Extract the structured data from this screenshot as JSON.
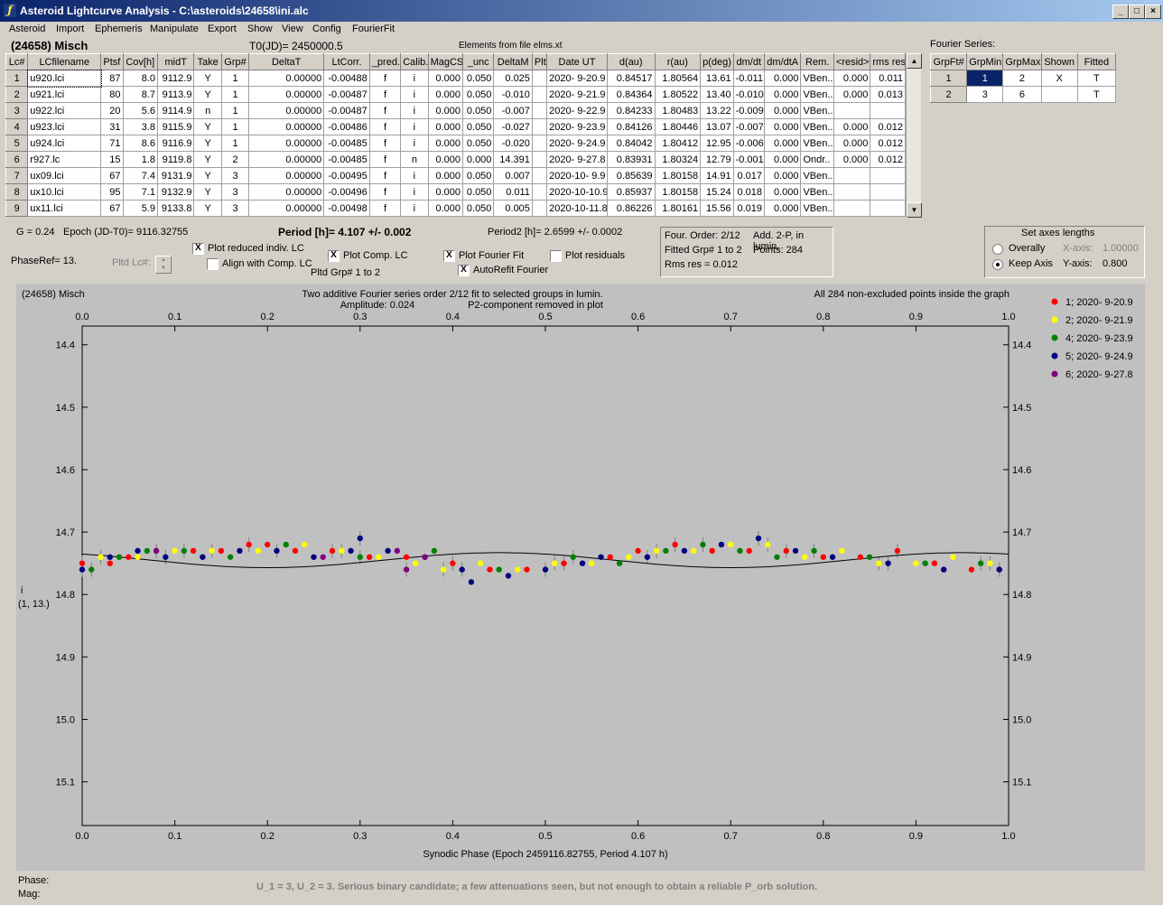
{
  "window": {
    "title": "Asteroid Lightcurve Analysis - C:\\asteroids\\24658\\ini.alc"
  },
  "menu": [
    "Asteroid",
    "Import",
    "Ephemeris",
    "Manipulate",
    "Export",
    "Show",
    "View",
    "Config",
    "FourierFit"
  ],
  "header": {
    "object": "(24658) Misch",
    "t0": "T0(JD)= 2450000.5",
    "elements": "Elements from file elms.xt"
  },
  "lc_table": {
    "columns": [
      "Lc#",
      "LCfilename",
      "Ptsf",
      "Cov[h]",
      "midT",
      "Take",
      "Grp#",
      "DeltaT",
      "LtCorr.",
      "_pred.",
      "Calib.",
      "MagCS",
      "_unc",
      "DeltaM",
      "Plt",
      "Date UT",
      "d(au)",
      "r(au)",
      "p(deg)",
      "dm/dt",
      "dm/dtA",
      "Rem.",
      "<resid>",
      "rms res"
    ],
    "rows": [
      [
        "1",
        "u920.lci",
        "87",
        "8.0",
        "9112.9",
        "Y",
        "1",
        "0.00000",
        "-0.00488",
        "f",
        "i",
        "0.000",
        "0.050",
        "0.025",
        "",
        "2020- 9-20.9",
        "0.84517",
        "1.80564",
        "13.61",
        "-0.011",
        "0.000",
        "VBen..",
        "0.000",
        "0.011"
      ],
      [
        "2",
        "u921.lci",
        "80",
        "8.7",
        "9113.9",
        "Y",
        "1",
        "0.00000",
        "-0.00487",
        "f",
        "i",
        "0.000",
        "0.050",
        "-0.010",
        "",
        "2020- 9-21.9",
        "0.84364",
        "1.80522",
        "13.40",
        "-0.010",
        "0.000",
        "VBen..",
        "0.000",
        "0.013"
      ],
      [
        "3",
        "u922.lci",
        "20",
        "5.6",
        "9114.9",
        "n",
        "1",
        "0.00000",
        "-0.00487",
        "f",
        "i",
        "0.000",
        "0.050",
        "-0.007",
        "",
        "2020- 9-22.9",
        "0.84233",
        "1.80483",
        "13.22",
        "-0.009",
        "0.000",
        "VBen..",
        "",
        ""
      ],
      [
        "4",
        "u923.lci",
        "31",
        "3.8",
        "9115.9",
        "Y",
        "1",
        "0.00000",
        "-0.00486",
        "f",
        "i",
        "0.000",
        "0.050",
        "-0.027",
        "",
        "2020- 9-23.9",
        "0.84126",
        "1.80446",
        "13.07",
        "-0.007",
        "0.000",
        "VBen..",
        "0.000",
        "0.012"
      ],
      [
        "5",
        "u924.lci",
        "71",
        "8.6",
        "9116.9",
        "Y",
        "1",
        "0.00000",
        "-0.00485",
        "f",
        "i",
        "0.000",
        "0.050",
        "-0.020",
        "",
        "2020- 9-24.9",
        "0.84042",
        "1.80412",
        "12.95",
        "-0.006",
        "0.000",
        "VBen..",
        "0.000",
        "0.012"
      ],
      [
        "6",
        "r927.lc",
        "15",
        "1.8",
        "9119.8",
        "Y",
        "2",
        "0.00000",
        "-0.00485",
        "f",
        "n",
        "0.000",
        "0.000",
        "14.391",
        "",
        "2020- 9-27.8",
        "0.83931",
        "1.80324",
        "12.79",
        "-0.001",
        "0.000",
        "Ondr..",
        "0.000",
        "0.012"
      ],
      [
        "7",
        "ux09.lci",
        "67",
        "7.4",
        "9131.9",
        "Y",
        "3",
        "0.00000",
        "-0.00495",
        "f",
        "i",
        "0.000",
        "0.050",
        "0.007",
        "",
        "2020-10- 9.9",
        "0.85639",
        "1.80158",
        "14.91",
        "0.017",
        "0.000",
        "VBen..",
        "",
        ""
      ],
      [
        "8",
        "ux10.lci",
        "95",
        "7.1",
        "9132.9",
        "Y",
        "3",
        "0.00000",
        "-0.00496",
        "f",
        "i",
        "0.000",
        "0.050",
        "0.011",
        "",
        "2020-10-10.9",
        "0.85937",
        "1.80158",
        "15.24",
        "0.018",
        "0.000",
        "VBen..",
        "",
        ""
      ],
      [
        "9",
        "ux11.lci",
        "67",
        "5.9",
        "9133.8",
        "Y",
        "3",
        "0.00000",
        "-0.00498",
        "f",
        "i",
        "0.000",
        "0.050",
        "0.005",
        "",
        "2020-10-11.8",
        "0.86226",
        "1.80161",
        "15.56",
        "0.019",
        "0.000",
        "VBen..",
        "",
        ""
      ]
    ]
  },
  "fourier": {
    "label": "Fourier Series:",
    "columns": [
      "GrpFt#",
      "GrpMin",
      "GrpMax",
      "Shown",
      "Fitted"
    ],
    "rows": [
      [
        "1",
        "1",
        "2",
        "X",
        "T"
      ],
      [
        "2",
        "3",
        "6",
        "",
        "T"
      ]
    ]
  },
  "controls": {
    "g": "G = 0.24",
    "epoch": "Epoch (JD-T0)= 9116.32755",
    "period": "Period [h]= 4.107 +/- 0.002",
    "period2": "Period2 [h]= 2.6599 +/- 0.0002",
    "phaseref": "PhaseRef= 13.",
    "pltd_lc": "Pltd Lc#:",
    "plot_reduced": "Plot reduced indiv. LC",
    "align_comp": "Align with Comp. LC",
    "plot_comp": "Plot Comp. LC",
    "pltd_grp": "Pltd Grp#  1   to   2",
    "plot_fourier": "Plot Fourier Fit",
    "autorefit": "AutoRefit Fourier",
    "plot_residuals": "Plot residuals",
    "check": "X"
  },
  "info_box": {
    "order": "Four. Order:  2/12",
    "add": "Add. 2-P, in lumin.",
    "fitted": "Fitted Grp# 1 to 2",
    "points": "Points: 284",
    "rms": "Rms res     = 0.012"
  },
  "axes_box": {
    "title": "Set axes lengths",
    "overally": "Overally",
    "keep_axis": "Keep Axis",
    "xaxis_label": "X-axis:",
    "xaxis_value": "1.00000",
    "yaxis_label": "Y-axis:",
    "yaxis_value": "0.800"
  },
  "plot": {
    "object": "(24658) Misch",
    "line1": "Two additive Fourier series order 2/12 fit to selected groups in lumin.",
    "line2a": "Amplitude: 0.024",
    "line2b": "P2-component removed in plot",
    "points_note": "All 284 non-excluded points inside the graph",
    "yaxis_label": "i",
    "yaxis_sub": "(1, 13.)",
    "xlabel": "Synodic Phase (Epoch 2459116.82755, Period 4.107 h)"
  },
  "chart_data": {
    "type": "scatter",
    "title": "",
    "xlabel": "Synodic Phase (Epoch 2459116.82755, Period 4.107 h)",
    "ylabel": "i",
    "xlim": [
      0.0,
      1.0
    ],
    "ylim": [
      15.17,
      14.37
    ],
    "y_inverted": true,
    "x_ticks": [
      "0.0",
      "0.1",
      "0.2",
      "0.3",
      "0.4",
      "0.5",
      "0.6",
      "0.7",
      "0.8",
      "0.9",
      "1.0"
    ],
    "y_ticks": [
      "14.4",
      "14.5",
      "14.6",
      "14.7",
      "14.8",
      "14.9",
      "15.0",
      "15.1"
    ],
    "fit_curve": {
      "mean": 14.745,
      "amp": 0.012,
      "harmonics": 2
    },
    "series": [
      {
        "name": "1; 2020- 9-20.9",
        "color": "#ff0000",
        "x": [
          0.0,
          0.03,
          0.05,
          0.08,
          0.12,
          0.15,
          0.18,
          0.2,
          0.23,
          0.27,
          0.31,
          0.35,
          0.4,
          0.44,
          0.48,
          0.52,
          0.57,
          0.6,
          0.64,
          0.68,
          0.72,
          0.76,
          0.8,
          0.84,
          0.88,
          0.92,
          0.96,
          0.99
        ],
        "y": [
          14.75,
          14.75,
          14.74,
          14.73,
          14.73,
          14.73,
          14.72,
          14.72,
          14.73,
          14.73,
          14.74,
          14.74,
          14.75,
          14.76,
          14.76,
          14.75,
          14.74,
          14.73,
          14.72,
          14.73,
          14.73,
          14.73,
          14.74,
          14.74,
          14.73,
          14.75,
          14.76,
          14.76
        ]
      },
      {
        "name": "2; 2020- 9-21.9",
        "color": "#ffff00",
        "x": [
          0.02,
          0.06,
          0.1,
          0.14,
          0.19,
          0.24,
          0.28,
          0.32,
          0.36,
          0.39,
          0.43,
          0.47,
          0.51,
          0.55,
          0.59,
          0.62,
          0.66,
          0.7,
          0.74,
          0.78,
          0.82,
          0.86,
          0.9,
          0.94,
          0.98
        ],
        "y": [
          14.74,
          14.74,
          14.73,
          14.73,
          14.73,
          14.72,
          14.73,
          14.74,
          14.75,
          14.76,
          14.75,
          14.76,
          14.75,
          14.75,
          14.74,
          14.73,
          14.73,
          14.72,
          14.72,
          14.74,
          14.73,
          14.75,
          14.75,
          14.74,
          14.75
        ]
      },
      {
        "name": "4; 2020- 9-23.9",
        "color": "#008000",
        "x": [
          0.01,
          0.04,
          0.07,
          0.11,
          0.16,
          0.22,
          0.3,
          0.38,
          0.45,
          0.53,
          0.58,
          0.63,
          0.67,
          0.71,
          0.75,
          0.79,
          0.85,
          0.91,
          0.97
        ],
        "y": [
          14.76,
          14.74,
          14.73,
          14.73,
          14.74,
          14.72,
          14.74,
          14.73,
          14.76,
          14.74,
          14.75,
          14.73,
          14.72,
          14.73,
          14.74,
          14.73,
          14.74,
          14.75,
          14.75
        ]
      },
      {
        "name": "5; 2020- 9-24.9",
        "color": "#000080",
        "x": [
          0.0,
          0.03,
          0.06,
          0.09,
          0.13,
          0.17,
          0.21,
          0.25,
          0.29,
          0.3,
          0.33,
          0.37,
          0.41,
          0.42,
          0.46,
          0.5,
          0.54,
          0.56,
          0.61,
          0.65,
          0.69,
          0.73,
          0.77,
          0.81,
          0.87,
          0.93,
          0.99
        ],
        "y": [
          14.76,
          14.74,
          14.73,
          14.74,
          14.74,
          14.73,
          14.73,
          14.74,
          14.73,
          14.71,
          14.73,
          14.74,
          14.76,
          14.78,
          14.77,
          14.76,
          14.75,
          14.74,
          14.74,
          14.73,
          14.72,
          14.71,
          14.73,
          14.74,
          14.75,
          14.76,
          14.76
        ]
      },
      {
        "name": "6; 2020- 9-27.8",
        "color": "#800080",
        "x": [
          0.08,
          0.26,
          0.34,
          0.35,
          0.37
        ],
        "y": [
          14.73,
          14.74,
          14.73,
          14.76,
          14.74
        ]
      }
    ]
  },
  "status": {
    "phase": "Phase:",
    "mag": "Mag:",
    "message": "U_1 = 3, U_2 = 3. Serious binary candidate; a few attenuations seen, but not enough to obtain a reliable P_orb solution."
  }
}
